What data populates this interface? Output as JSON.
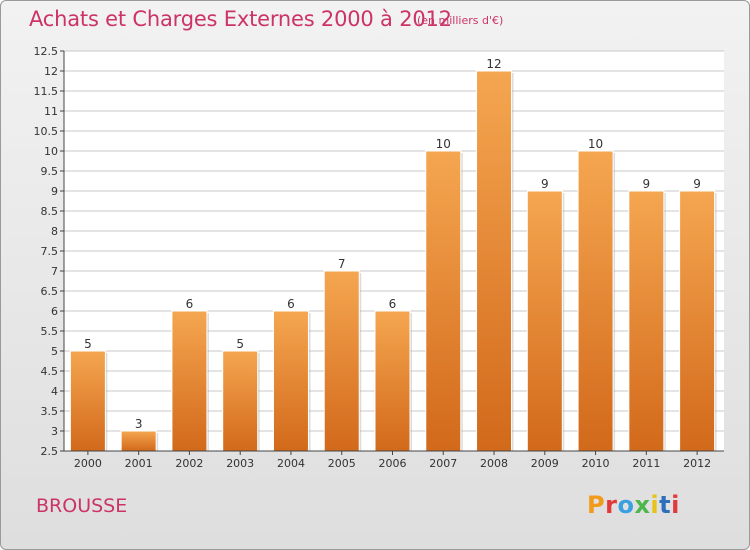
{
  "chart_title": "Achats et Charges Externes 2000 à 2012",
  "chart_subtitle": "(en milliers d'€)",
  "city_name": "BROUSSE",
  "logo_text": "Proxiti",
  "logo_colors": [
    "#f29a1a",
    "#e23a3a",
    "#3aa0e0",
    "#4cb84c",
    "#e6c21a",
    "#2d6ebd",
    "#e23a3a"
  ],
  "colors": {
    "bar_top": "#f5a650",
    "bar_bottom": "#d2691b",
    "accent": "#cc3366",
    "axis": "#444444",
    "grid": "#c8c8c8"
  },
  "chart_data": {
    "type": "bar",
    "categories": [
      "2000",
      "2001",
      "2002",
      "2003",
      "2004",
      "2005",
      "2006",
      "2007",
      "2008",
      "2009",
      "2010",
      "2011",
      "2012"
    ],
    "values": [
      5,
      3,
      6,
      5,
      6,
      7,
      6,
      10,
      12,
      9,
      10,
      9,
      9
    ],
    "value_labels": [
      "5",
      "3",
      "6",
      "5",
      "6",
      "7",
      "6",
      "10",
      "12",
      "9",
      "10",
      "9",
      "9"
    ],
    "yticks": [
      "2.5",
      "3",
      "3.5",
      "4",
      "4.5",
      "5",
      "5.5",
      "6",
      "6.5",
      "7",
      "7.5",
      "8",
      "8.5",
      "9",
      "9.5",
      "10",
      "10.5",
      "11",
      "11.5",
      "12",
      "12.5"
    ],
    "ylim": [
      2.5,
      12.5
    ],
    "grid": true,
    "xlabel": "",
    "ylabel": ""
  }
}
